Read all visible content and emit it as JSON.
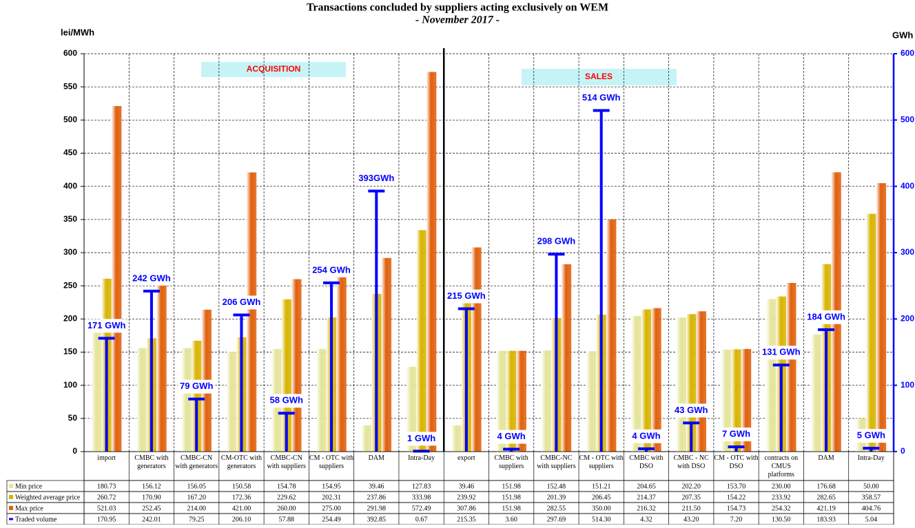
{
  "chart_data": {
    "type": "bar",
    "title": "Transactions concluded by suppliers acting exclusively on WEM",
    "subtitle": "- November 2017 -",
    "y_label": "lei/MWh",
    "y2_label": "GWh",
    "section_labels": [
      "ACQUISITION",
      "SALES"
    ],
    "categories": [
      "import",
      "CMBC with generators",
      "CMBC-CN with generators",
      "CM-OTC with generators",
      "CMBC-CN with suppliers",
      "CM - OTC with suppliers",
      "DAM",
      "Intra-Day",
      "export",
      "CMBC with suppliers",
      "CMBC-NC with suppliers",
      "CM - OTC with suppliers",
      "CMBC with DSO",
      "CMBC - NC with DSO",
      "CM - OTC with DSO",
      "contracts on CMUS platforms",
      "DAM",
      "Intra-Day"
    ],
    "series": [
      {
        "name": "Min price",
        "color": "#e4e49a",
        "values": [
          180.73,
          156.12,
          156.05,
          150.58,
          154.78,
          154.95,
          39.46,
          127.83,
          39.46,
          151.98,
          152.48,
          151.21,
          204.65,
          202.2,
          153.7,
          230.0,
          176.68,
          50.0
        ],
        "value_labels": [
          "180.73",
          "156.12",
          "156.05",
          "150.58",
          "154.78",
          "154.95",
          "39.46",
          "127.83",
          "39.46",
          "151.98",
          "152.48",
          "151.21",
          "204.65",
          "202.20",
          "153.70",
          "230.00",
          "176.68",
          "50.00"
        ]
      },
      {
        "name": "Weighted average price",
        "color": "#d8b400",
        "values": [
          260.72,
          170.9,
          167.2,
          172.36,
          229.62,
          202.31,
          237.86,
          333.98,
          239.92,
          151.98,
          201.39,
          206.45,
          214.37,
          207.35,
          154.22,
          233.92,
          282.65,
          358.57
        ],
        "value_labels": [
          "260.72",
          "170.90",
          "167.20",
          "172.36",
          "229.62",
          "202.31",
          "237.86",
          "333.98",
          "239.92",
          "151.98",
          "201.39",
          "206.45",
          "214.37",
          "207.35",
          "154.22",
          "233.92",
          "282.65",
          "358.57"
        ]
      },
      {
        "name": "Max price",
        "color": "#e0600c",
        "values": [
          521.03,
          252.45,
          214.0,
          421.0,
          260.0,
          275.0,
          291.98,
          572.49,
          307.86,
          151.98,
          282.55,
          350.0,
          216.32,
          211.5,
          154.73,
          254.32,
          421.19,
          404.76
        ],
        "value_labels": [
          "521.03",
          "252.45",
          "214.00",
          "421.00",
          "260.00",
          "275.00",
          "291.98",
          "572.49",
          "307.86",
          "151.98",
          "282.55",
          "350.00",
          "216.32",
          "211.50",
          "154.73",
          "254.32",
          "421.19",
          "404.76"
        ]
      },
      {
        "name": "Traded volume",
        "color": "#0000ff",
        "axis": "y2",
        "values": [
          170.95,
          242.01,
          79.25,
          206.1,
          57.88,
          254.49,
          392.85,
          0.67,
          215.35,
          3.6,
          297.69,
          514.3,
          4.32,
          43.2,
          7.2,
          130.5,
          183.93,
          5.04
        ],
        "value_labels": [
          "170.95",
          "242.01",
          "79.25",
          "206.10",
          "57.88",
          "254.49",
          "392.85",
          "0.67",
          "215.35",
          "3.60",
          "297.69",
          "514.30",
          "4.32",
          "43.20",
          "7.20",
          "130.50",
          "183.93",
          "5.04"
        ],
        "point_labels": [
          "171 GWh",
          "242 GWh",
          "79 GWh",
          "206 GWh",
          "58 GWh",
          "254 GWh",
          "393GWh",
          "1 GWh",
          "215 GWh",
          "4 GWh",
          "298 GWh",
          "514 GWh",
          "4 GWh",
          "43 GWh",
          "7 GWh",
          "131 GWh",
          "184 GWh",
          "5 GWh"
        ]
      }
    ],
    "ylim": [
      0,
      600
    ],
    "yticks": [
      0,
      50,
      100,
      150,
      200,
      250,
      300,
      350,
      400,
      450,
      500,
      550,
      600
    ],
    "y2lim": [
      0,
      600
    ],
    "y2ticks": [
      0,
      100,
      200,
      300,
      400,
      500,
      600
    ],
    "grid": true
  }
}
